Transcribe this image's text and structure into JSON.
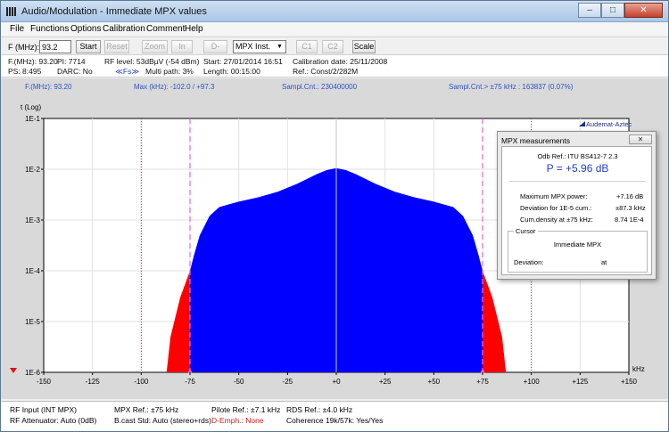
{
  "window": {
    "title": "Audio/Modulation - Immediate MPX values",
    "minimize_label": "–",
    "maximize_label": "□",
    "close_label": "✕"
  },
  "menu": [
    "File",
    "Functions",
    "Options",
    "Calibration",
    "Comment",
    "Help"
  ],
  "toolbar": {
    "freq_label": "F (MHz):",
    "freq_value": "93.2",
    "start_label": "Start",
    "reset_label": "Reset",
    "zoom_label": "Zoom",
    "in_label": "In",
    "demp_label": "D-Emp",
    "mode_value": "MPX Inst.",
    "c1_label": "C1",
    "c2_label": "C2",
    "scale_label": "Scale"
  },
  "info": {
    "freq": "F.(MHz): 93.20",
    "ps": "PS:  8:495",
    "pi": "PI: 7714",
    "darc": "DARC: No",
    "rf_level": "RF level: 53dBµV (-54 dBm)",
    "fs_icon_label": "≪Fs≫",
    "multipath": "Multi path: 3%",
    "start": "Start: 27/01/2014 16:51",
    "length": "Length: 00:15:00",
    "calibration_date": "Calibration date: 25/11/2008",
    "ref": "Ref.: Const/2/282M"
  },
  "plot_header": {
    "freq": "F.(MHz): 93.20",
    "max": "Max (kHz): -102.0 / +97.3",
    "sampl": "Sampl.Cnt.: 230400000",
    "sampl_over": "Sampl.Cnt.> ±75 kHz : 163837 (0.07%)"
  },
  "chart_data": {
    "type": "area",
    "ylabel": "t (Log)",
    "xlabel": "kHz",
    "y_scale": "log",
    "ylim": [
      1e-06,
      0.1
    ],
    "xlim": [
      -150,
      150
    ],
    "y_tick_labels": [
      "1E-1",
      "1E-2",
      "1E-3",
      "1E-4",
      "1E-5",
      "1E-6"
    ],
    "x_tick_labels": [
      "-150",
      "-125",
      "-100",
      "-75",
      "-50",
      "-25",
      "+0",
      "+25",
      "+50",
      "+75",
      "+100",
      "+125",
      "+150"
    ],
    "x_ticks": [
      -150,
      -125,
      -100,
      -75,
      -50,
      -25,
      0,
      25,
      50,
      75,
      100,
      125,
      150
    ],
    "red_dotted_lines": [
      -100,
      100
    ],
    "pink_dashed_lines": [
      -75,
      75
    ],
    "logo_text": "Audemat-Aztec",
    "main_color": "#0000ff",
    "over_color": "#ff0000",
    "points": [
      [
        -87,
        1e-06
      ],
      [
        -85,
        5e-06
      ],
      [
        -80,
        3e-05
      ],
      [
        -75,
        0.0001
      ],
      [
        -73,
        0.0002
      ],
      [
        -70,
        0.0005
      ],
      [
        -65,
        0.0012
      ],
      [
        -60,
        0.0018
      ],
      [
        -50,
        0.0023
      ],
      [
        -40,
        0.0028
      ],
      [
        -30,
        0.0036
      ],
      [
        -20,
        0.0052
      ],
      [
        -10,
        0.008
      ],
      [
        -5,
        0.0096
      ],
      [
        0,
        0.0105
      ],
      [
        5,
        0.0096
      ],
      [
        10,
        0.008
      ],
      [
        20,
        0.0052
      ],
      [
        30,
        0.0036
      ],
      [
        40,
        0.0028
      ],
      [
        50,
        0.0023
      ],
      [
        60,
        0.0018
      ],
      [
        65,
        0.0012
      ],
      [
        70,
        0.0005
      ],
      [
        73,
        0.0002
      ],
      [
        75,
        0.0001
      ],
      [
        80,
        3e-05
      ],
      [
        85,
        5e-06
      ],
      [
        87,
        1e-06
      ]
    ]
  },
  "panel": {
    "title": "MPX measurements",
    "close_label": "✕",
    "odb_ref": "Odb Ref.: ITU BS412-7 2.3",
    "power": "P = +5.96 dB",
    "rows": [
      {
        "label": "Maximum MPX power:",
        "value": "+7.16 dB"
      },
      {
        "label": "Deviation for 1E-5 cum.:",
        "value": "±87.3 kHz"
      },
      {
        "label": "Cum.density at ±75 kHz:",
        "value": "8.74 1E-4"
      }
    ],
    "cursor_group": "Cursor",
    "cursor_mode": "Immediate MPX",
    "deviation_label": "Deviation:",
    "deviation_value": "at"
  },
  "status": {
    "rf_input": "RF Input (INT MPX)",
    "rf_att": "RF Attenuator: Auto (0dB)",
    "mpx_ref": "MPX Ref.: ±75 kHz",
    "bcast": "B.cast Std: Auto (stereo+rds)",
    "pilot_ref": "Pilote Ref.: ±7.1 kHz",
    "demph": "D-Emph.: None",
    "rds_ref": "RDS Ref.: ±4.0 kHz",
    "coherence": "Coherence 19k/57k: Yes/Yes"
  }
}
